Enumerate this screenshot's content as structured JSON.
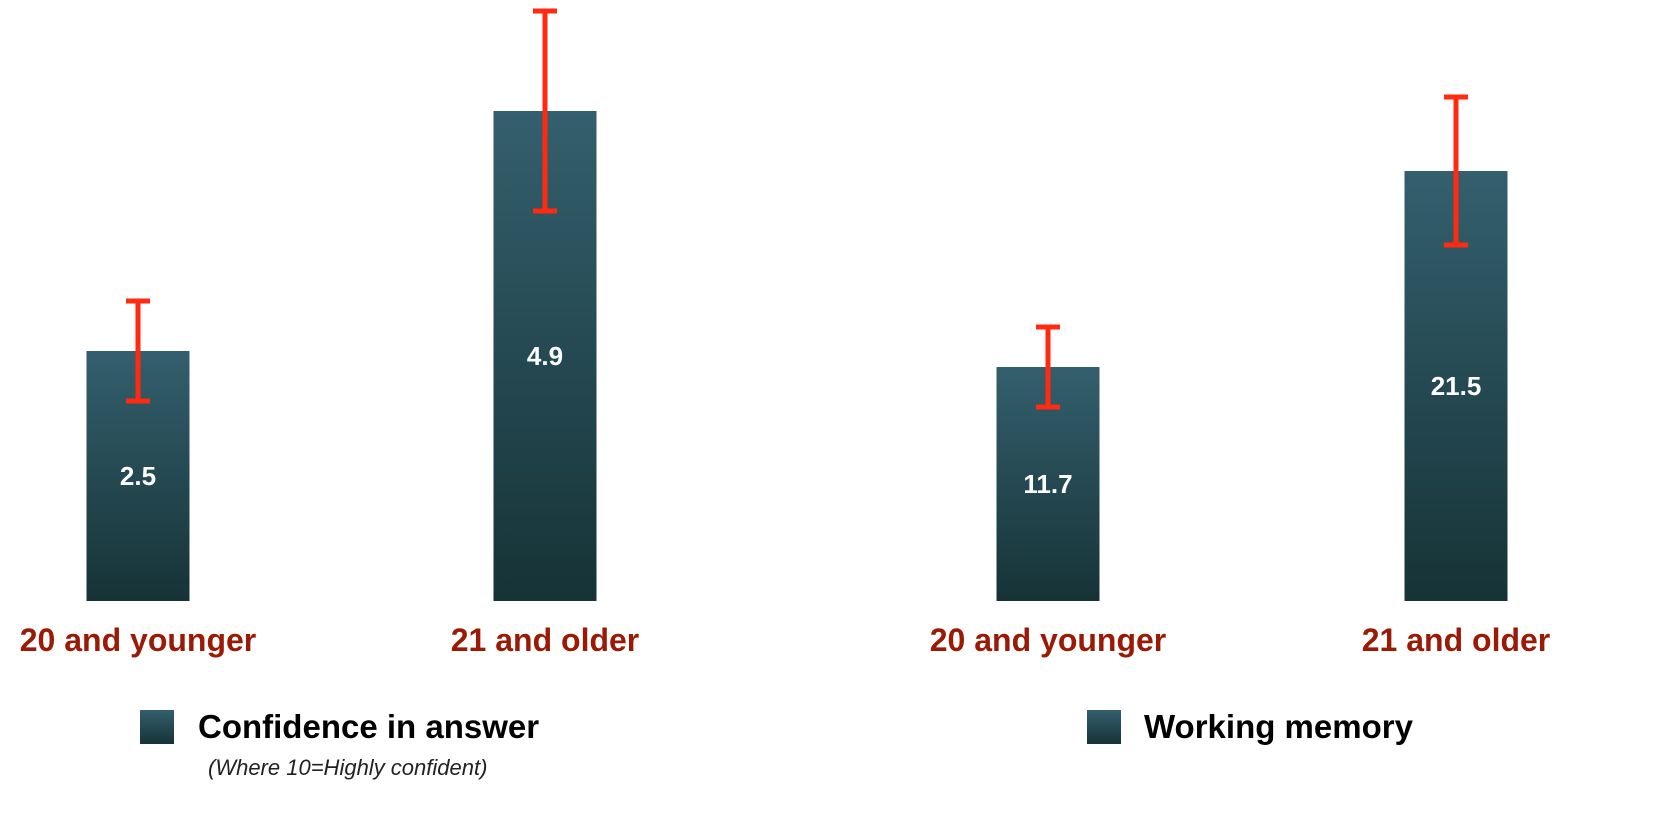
{
  "colors": {
    "bar_top": "#345f6e",
    "bar_bottom": "#163336",
    "error_bar": "#ff2a10",
    "category_label": "#9a1a05"
  },
  "chart_data": [
    {
      "type": "bar",
      "categories": [
        "20 and younger",
        "21 and older"
      ],
      "values": [
        2.5,
        4.9
      ],
      "error_high": [
        3.0,
        5.9
      ],
      "error_low": [
        2.0,
        3.9
      ],
      "data_labels": [
        "2.5",
        "4.9"
      ],
      "ylim": [
        0,
        5.9
      ],
      "legend": {
        "label": "Confidence in answer",
        "note": "(Where 10=Highly confident)",
        "placement": "bottom"
      }
    },
    {
      "type": "bar",
      "categories": [
        "20 and younger",
        "21 and older"
      ],
      "values": [
        11.7,
        21.5
      ],
      "error_high": [
        13.7,
        25.2
      ],
      "error_low": [
        9.7,
        17.8
      ],
      "data_labels": [
        "11.7",
        "21.5"
      ],
      "ylim": [
        0,
        29.5
      ],
      "legend": {
        "label": "Working memory",
        "note": "",
        "placement": "bottom"
      }
    }
  ]
}
